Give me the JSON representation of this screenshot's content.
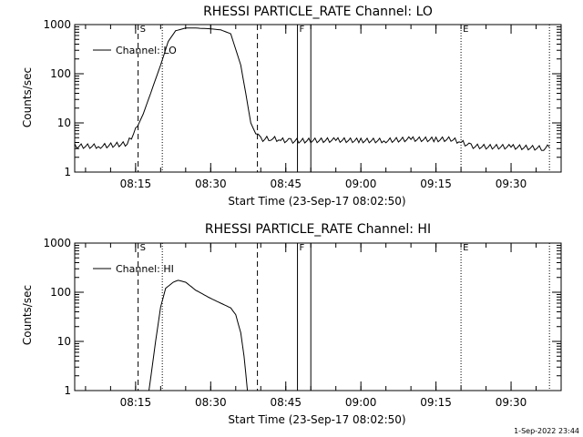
{
  "timestamp": "1-Sep-2022 23:44",
  "chart_data": [
    {
      "type": "line",
      "title": "RHESSI PARTICLE_RATE Channel: LO",
      "xlabel": "Start Time (23-Sep-17 08:02:50)",
      "ylabel": "Counts/sec",
      "yscale": "log",
      "ylim": [
        1,
        1000
      ],
      "xlim": [
        "08:02:50",
        "09:40:00"
      ],
      "xticks": [
        "08:15",
        "08:30",
        "08:45",
        "09:00",
        "09:15",
        "09:30"
      ],
      "yticks": [
        "1",
        "10",
        "100",
        "1000"
      ],
      "legend": {
        "placement": "top-left",
        "entries": [
          "Channel: LO"
        ]
      },
      "markers": [
        {
          "label": "S",
          "time": "08:15:30",
          "style": "dashed"
        },
        {
          "time": "08:20:20",
          "style": "dotted"
        },
        {
          "time": "08:39:20",
          "style": "dashed"
        },
        {
          "label": "F",
          "time": "08:47:20",
          "style": "solid"
        },
        {
          "time": "08:50:00",
          "style": "solid"
        },
        {
          "label": "E",
          "time": "09:20:00",
          "style": "dotted"
        },
        {
          "time": "09:37:40",
          "style": "dotted"
        }
      ],
      "series": [
        {
          "name": "Channel: LO",
          "x": [
            "08:02:50",
            "08:08:00",
            "08:13:20",
            "08:15:00",
            "08:16:30",
            "08:18:00",
            "08:20:00",
            "08:21:30",
            "08:23:00",
            "08:25:00",
            "08:27:00",
            "08:30:00",
            "08:32:00",
            "08:34:00",
            "08:36:00",
            "08:37:00",
            "08:38:00",
            "08:39:00",
            "08:40:00",
            "08:42:00",
            "08:44:00",
            "08:46:00",
            "08:50:00",
            "08:55:00",
            "09:00:00",
            "09:05:00",
            "09:10:00",
            "09:15:00",
            "09:18:00",
            "09:20:00",
            "09:22:00",
            "09:25:00",
            "09:30:00",
            "09:33:00",
            "09:36:30",
            "09:37:40"
          ],
          "y": [
            3.3,
            3.3,
            3.7,
            7,
            15,
            40,
            150,
            450,
            750,
            850,
            850,
            820,
            780,
            650,
            150,
            40,
            10,
            6,
            4.5,
            4.8,
            4.4,
            4.2,
            4.3,
            4.4,
            4.3,
            4.3,
            4.6,
            4.5,
            4.6,
            4.0,
            3.3,
            3.2,
            3.2,
            3.1,
            3.0,
            3.2
          ]
        }
      ]
    },
    {
      "type": "line",
      "title": "RHESSI PARTICLE_RATE Channel: HI",
      "xlabel": "Start Time (23-Sep-17 08:02:50)",
      "ylabel": "Counts/sec",
      "yscale": "log",
      "ylim": [
        1,
        1000
      ],
      "xlim": [
        "08:02:50",
        "09:40:00"
      ],
      "xticks": [
        "08:15",
        "08:30",
        "08:45",
        "09:00",
        "09:15",
        "09:30"
      ],
      "yticks": [
        "1",
        "10",
        "100",
        "1000"
      ],
      "legend": {
        "placement": "top-left",
        "entries": [
          "Channel: HI"
        ]
      },
      "markers": [
        {
          "label": "S",
          "time": "08:15:30",
          "style": "dashed"
        },
        {
          "time": "08:20:20",
          "style": "dotted"
        },
        {
          "time": "08:39:20",
          "style": "dashed"
        },
        {
          "label": "F",
          "time": "08:47:20",
          "style": "solid"
        },
        {
          "time": "08:50:00",
          "style": "solid"
        },
        {
          "label": "E",
          "time": "09:20:00",
          "style": "dotted"
        },
        {
          "time": "09:37:40",
          "style": "dotted"
        }
      ],
      "series": [
        {
          "name": "Channel: HI",
          "x": [
            "08:17:40",
            "08:19:00",
            "08:20:00",
            "08:21:00",
            "08:22:30",
            "08:23:30",
            "08:25:00",
            "08:27:00",
            "08:30:00",
            "08:32:00",
            "08:34:00",
            "08:35:00",
            "08:36:00",
            "08:36:40",
            "08:37:20"
          ],
          "y": [
            1,
            10,
            50,
            120,
            160,
            175,
            160,
            110,
            75,
            60,
            48,
            35,
            15,
            5,
            1
          ]
        }
      ]
    }
  ]
}
